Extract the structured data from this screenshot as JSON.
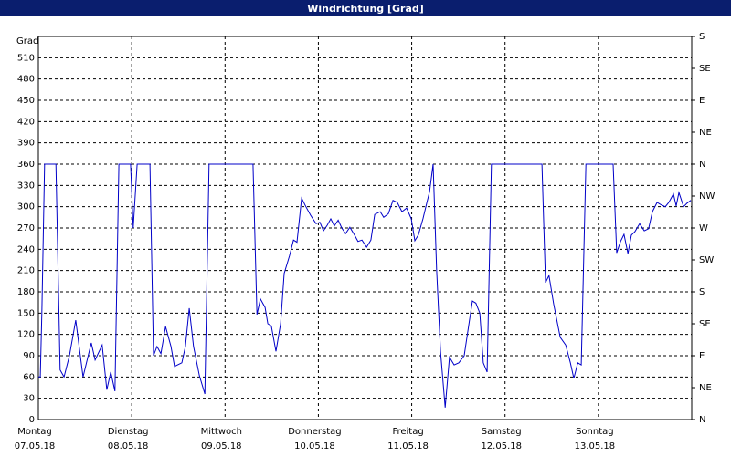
{
  "chart_data": {
    "type": "line",
    "title": "Windrichtung [Grad]",
    "y_label": "Grad",
    "color": "#0000c8",
    "grid": true,
    "xlim": [
      0,
      168
    ],
    "xticks": [
      {
        "value": 0,
        "label": "Montag"
      },
      {
        "value": 24,
        "label": "Dienstag"
      },
      {
        "value": 48,
        "label": "Mittwoch"
      },
      {
        "value": 72,
        "label": "Donnerstag"
      },
      {
        "value": 96,
        "label": "Freitag"
      },
      {
        "value": 120,
        "label": "Samstag"
      },
      {
        "value": 144,
        "label": "Sonntag"
      }
    ],
    "xtick_dates": [
      "07.05.18",
      "08.05.18",
      "09.05.18",
      "10.05.18",
      "11.05.18",
      "12.05.18",
      "13.05.18"
    ],
    "ylim": [
      0,
      540
    ],
    "yticks": [
      0,
      30,
      60,
      90,
      120,
      150,
      180,
      210,
      240,
      270,
      300,
      330,
      360,
      390,
      420,
      450,
      480,
      510
    ],
    "y2lim": [
      0,
      540
    ],
    "y2ticks": [
      {
        "value": 0,
        "label": "N"
      },
      {
        "value": 45,
        "label": "NE"
      },
      {
        "value": 90,
        "label": "E"
      },
      {
        "value": 135,
        "label": "SE"
      },
      {
        "value": 180,
        "label": "S"
      },
      {
        "value": 225,
        "label": "SW"
      },
      {
        "value": 270,
        "label": "W"
      },
      {
        "value": 315,
        "label": "NW"
      },
      {
        "value": 360,
        "label": "N"
      },
      {
        "value": 405,
        "label": "NE"
      },
      {
        "value": 450,
        "label": "E"
      },
      {
        "value": 495,
        "label": "SE"
      },
      {
        "value": 540,
        "label": "S"
      }
    ],
    "x": [
      0,
      0.5,
      0.9,
      1.6,
      4.5,
      5.6,
      6.6,
      8.0,
      9.6,
      11.5,
      13.6,
      14.6,
      16.4,
      17.6,
      18.6,
      19.7,
      20.7,
      23.7,
      24.4,
      25.4,
      28.7,
      29.6,
      30.5,
      31.5,
      32.7,
      34.1,
      35.0,
      36.9,
      37.8,
      38.8,
      39.9,
      41.4,
      42.8,
      43.9,
      55.2,
      56.2,
      57.1,
      58.3,
      59.0,
      59.9,
      61.1,
      62.3,
      63.2,
      64.6,
      65.6,
      66.5,
      67.7,
      68.8,
      70.0,
      71.4,
      72.4,
      73.3,
      74.3,
      75.2,
      76.1,
      77.1,
      78.0,
      79.0,
      80.1,
      81.3,
      82.2,
      83.2,
      84.4,
      85.5,
      86.5,
      87.9,
      88.8,
      90.0,
      91.2,
      92.3,
      93.5,
      94.7,
      95.9,
      96.8,
      97.7,
      98.9,
      99.9,
      100.6,
      101.5,
      102.4,
      103.4,
      104.6,
      105.7,
      106.9,
      108.1,
      109.5,
      110.7,
      111.6,
      112.5,
      113.5,
      114.4,
      115.4,
      116.5,
      129.5,
      130.4,
      131.3,
      132.5,
      134.2,
      135.6,
      136.8,
      137.7,
      138.7,
      139.6,
      140.8,
      147.8,
      148.7,
      149.7,
      150.6,
      151.6,
      152.5,
      153.4,
      154.6,
      155.8,
      156.9,
      157.9,
      159.1,
      160.0,
      161.2,
      162.1,
      163.3,
      164.0,
      164.7,
      165.9,
      166.8,
      167.8
    ],
    "values": [
      60,
      60,
      150,
      360,
      360,
      70,
      60,
      90,
      140,
      60,
      108,
      84,
      105,
      42,
      67,
      40,
      360,
      360,
      270,
      360,
      360,
      90,
      103,
      93,
      131,
      103,
      75,
      80,
      103,
      157,
      103,
      62,
      36,
      360,
      360,
      148,
      170,
      158,
      135,
      132,
      96,
      135,
      206,
      231,
      253,
      250,
      312,
      300,
      288,
      276,
      278,
      266,
      274,
      283,
      273,
      281,
      270,
      262,
      271,
      260,
      251,
      253,
      243,
      253,
      289,
      293,
      285,
      290,
      309,
      306,
      293,
      298,
      283,
      252,
      260,
      283,
      306,
      321,
      360,
      212,
      96,
      17,
      88,
      77,
      80,
      90,
      134,
      167,
      164,
      150,
      80,
      67,
      360,
      360,
      193,
      203,
      163,
      116,
      105,
      80,
      58,
      80,
      77,
      360,
      360,
      235,
      251,
      261,
      234,
      260,
      265,
      276,
      266,
      269,
      293,
      306,
      303,
      300,
      306,
      318,
      301,
      320,
      300,
      305,
      309
    ]
  }
}
